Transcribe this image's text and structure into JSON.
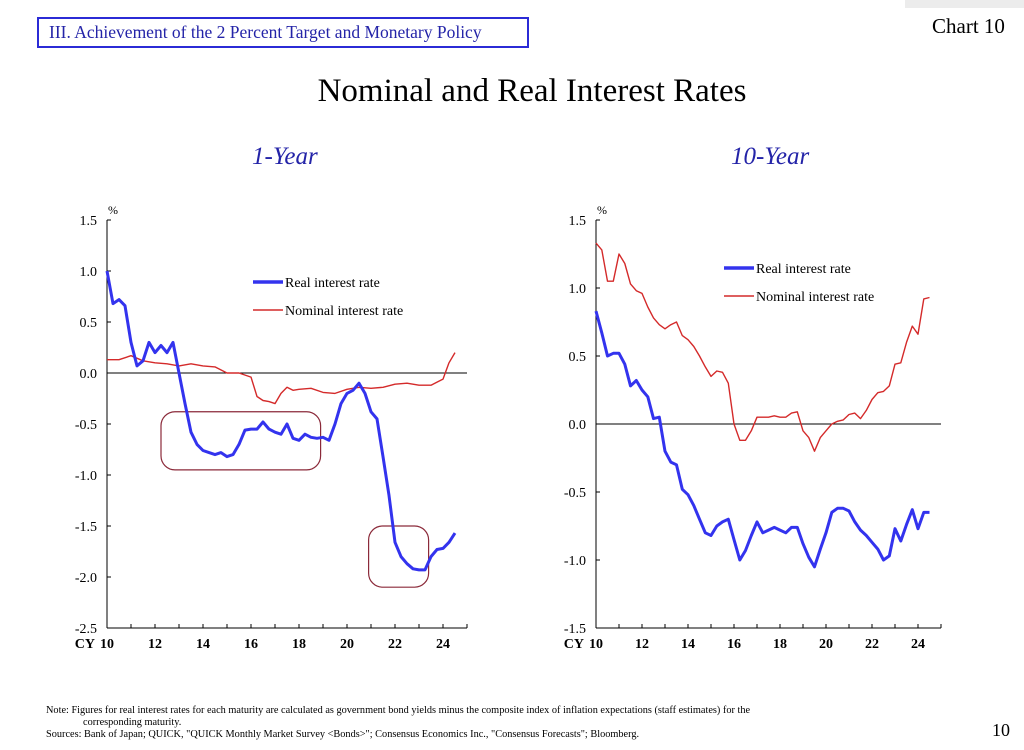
{
  "header": {
    "section_label": "III. Achievement of the 2 Percent Target and Monetary Policy",
    "chart_number": "Chart 10",
    "title": "Nominal and Real Interest Rates",
    "page_number": "10"
  },
  "footer": {
    "note_line1": "Note: Figures for real interest rates for each maturity are calculated as government bond yields minus the composite index of inflation expectations (staff estimates) for the",
    "note_line2": "corresponding maturity.",
    "sources": "Sources: Bank of Japan; QUICK, \"QUICK Monthly Market Survey <Bonds>\"; Consensus Economics Inc., \"Consensus Forecasts\"; Bloomberg."
  },
  "colors": {
    "real": "#3333ee",
    "nominal": "#d42a2a",
    "accent": "#2424a8",
    "highlight_box": "#8b2a3a"
  },
  "chart_data": [
    {
      "type": "line",
      "title": "1-Year",
      "unit_label": "%",
      "x_prefix": "CY",
      "xlim": [
        2010,
        2025
      ],
      "ylim": [
        -2.5,
        1.5
      ],
      "x_ticks": [
        10,
        12,
        14,
        16,
        18,
        20,
        22,
        24
      ],
      "y_ticks": [
        "1.5",
        "1.0",
        "0.5",
        "0.0",
        "-0.5",
        "-1.0",
        "-1.5",
        "-2.0",
        "-2.5"
      ],
      "legend_position": "top-right",
      "series": [
        {
          "name": "Real interest rate",
          "x": [
            2010.0,
            2010.25,
            2010.5,
            2010.75,
            2011.0,
            2011.25,
            2011.5,
            2011.75,
            2012.0,
            2012.25,
            2012.5,
            2012.75,
            2013.0,
            2013.25,
            2013.5,
            2013.75,
            2014.0,
            2014.25,
            2014.5,
            2014.75,
            2015.0,
            2015.25,
            2015.5,
            2015.75,
            2016.0,
            2016.25,
            2016.5,
            2016.75,
            2017.0,
            2017.25,
            2017.5,
            2017.75,
            2018.0,
            2018.25,
            2018.5,
            2018.75,
            2019.0,
            2019.25,
            2019.5,
            2019.75,
            2020.0,
            2020.25,
            2020.5,
            2020.75,
            2021.0,
            2021.25,
            2021.5,
            2021.75,
            2022.0,
            2022.25,
            2022.5,
            2022.75,
            2023.0,
            2023.25,
            2023.5,
            2023.75,
            2024.0,
            2024.25,
            2024.5
          ],
          "values": [
            1.0,
            0.68,
            0.72,
            0.66,
            0.3,
            0.07,
            0.12,
            0.3,
            0.2,
            0.27,
            0.2,
            0.3,
            0.0,
            -0.3,
            -0.58,
            -0.7,
            -0.76,
            -0.78,
            -0.8,
            -0.78,
            -0.82,
            -0.8,
            -0.7,
            -0.56,
            -0.55,
            -0.55,
            -0.48,
            -0.55,
            -0.58,
            -0.6,
            -0.5,
            -0.64,
            -0.66,
            -0.6,
            -0.63,
            -0.64,
            -0.63,
            -0.66,
            -0.5,
            -0.3,
            -0.2,
            -0.17,
            -0.1,
            -0.2,
            -0.38,
            -0.45,
            -0.82,
            -1.2,
            -1.66,
            -1.8,
            -1.87,
            -1.92,
            -1.93,
            -1.93,
            -1.8,
            -1.73,
            -1.72,
            -1.66,
            -1.57
          ]
        },
        {
          "name": "Nominal interest rate",
          "x": [
            2010.0,
            2010.5,
            2011.0,
            2011.5,
            2012.0,
            2012.5,
            2013.0,
            2013.5,
            2014.0,
            2014.5,
            2015.0,
            2015.5,
            2016.0,
            2016.25,
            2016.5,
            2016.75,
            2017.0,
            2017.25,
            2017.5,
            2017.75,
            2018.0,
            2018.5,
            2019.0,
            2019.5,
            2020.0,
            2020.5,
            2021.0,
            2021.5,
            2022.0,
            2022.5,
            2023.0,
            2023.5,
            2024.0,
            2024.25,
            2024.5
          ],
          "values": [
            0.13,
            0.13,
            0.17,
            0.12,
            0.1,
            0.09,
            0.07,
            0.09,
            0.07,
            0.06,
            0.0,
            0.0,
            -0.04,
            -0.23,
            -0.27,
            -0.28,
            -0.3,
            -0.2,
            -0.14,
            -0.17,
            -0.16,
            -0.15,
            -0.19,
            -0.2,
            -0.16,
            -0.14,
            -0.15,
            -0.14,
            -0.11,
            -0.1,
            -0.12,
            -0.12,
            -0.06,
            0.1,
            0.2
          ]
        }
      ]
    },
    {
      "type": "line",
      "title": "10-Year",
      "unit_label": "%",
      "x_prefix": "CY",
      "xlim": [
        2010,
        2025
      ],
      "ylim": [
        -1.5,
        1.5
      ],
      "x_ticks": [
        10,
        12,
        14,
        16,
        18,
        20,
        22,
        24
      ],
      "y_ticks": [
        "1.5",
        "1.0",
        "0.5",
        "0.0",
        "-0.5",
        "-1.0",
        "-1.5"
      ],
      "legend_position": "top-right",
      "series": [
        {
          "name": "Real interest rate",
          "x": [
            2010.0,
            2010.25,
            2010.5,
            2010.75,
            2011.0,
            2011.25,
            2011.5,
            2011.75,
            2012.0,
            2012.25,
            2012.5,
            2012.75,
            2013.0,
            2013.25,
            2013.5,
            2013.75,
            2014.0,
            2014.25,
            2014.5,
            2014.75,
            2015.0,
            2015.25,
            2015.5,
            2015.75,
            2016.0,
            2016.25,
            2016.5,
            2016.75,
            2017.0,
            2017.25,
            2017.5,
            2017.75,
            2018.0,
            2018.25,
            2018.5,
            2018.75,
            2019.0,
            2019.25,
            2019.5,
            2019.75,
            2020.0,
            2020.25,
            2020.5,
            2020.75,
            2021.0,
            2021.25,
            2021.5,
            2021.75,
            2022.0,
            2022.25,
            2022.5,
            2022.75,
            2023.0,
            2023.25,
            2023.5,
            2023.75,
            2024.0,
            2024.25,
            2024.5
          ],
          "values": [
            0.83,
            0.67,
            0.5,
            0.52,
            0.52,
            0.44,
            0.28,
            0.32,
            0.25,
            0.2,
            0.04,
            0.05,
            -0.2,
            -0.28,
            -0.3,
            -0.48,
            -0.52,
            -0.6,
            -0.7,
            -0.8,
            -0.82,
            -0.75,
            -0.72,
            -0.7,
            -0.85,
            -1.0,
            -0.93,
            -0.82,
            -0.72,
            -0.8,
            -0.78,
            -0.76,
            -0.78,
            -0.8,
            -0.76,
            -0.76,
            -0.88,
            -0.98,
            -1.05,
            -0.92,
            -0.8,
            -0.65,
            -0.62,
            -0.62,
            -0.64,
            -0.72,
            -0.78,
            -0.82,
            -0.87,
            -0.92,
            -1.0,
            -0.97,
            -0.77,
            -0.86,
            -0.74,
            -0.63,
            -0.77,
            -0.65,
            -0.65
          ]
        },
        {
          "name": "Nominal interest rate",
          "x": [
            2010.0,
            2010.25,
            2010.5,
            2010.75,
            2011.0,
            2011.25,
            2011.5,
            2011.75,
            2012.0,
            2012.25,
            2012.5,
            2012.75,
            2013.0,
            2013.25,
            2013.5,
            2013.75,
            2014.0,
            2014.25,
            2014.5,
            2014.75,
            2015.0,
            2015.25,
            2015.5,
            2015.75,
            2016.0,
            2016.25,
            2016.5,
            2016.75,
            2017.0,
            2017.25,
            2017.5,
            2017.75,
            2018.0,
            2018.25,
            2018.5,
            2018.75,
            2019.0,
            2019.25,
            2019.5,
            2019.75,
            2020.0,
            2020.25,
            2020.5,
            2020.75,
            2021.0,
            2021.25,
            2021.5,
            2021.75,
            2022.0,
            2022.25,
            2022.5,
            2022.75,
            2023.0,
            2023.25,
            2023.5,
            2023.75,
            2024.0,
            2024.25,
            2024.5
          ],
          "values": [
            1.33,
            1.28,
            1.05,
            1.05,
            1.25,
            1.18,
            1.03,
            0.98,
            0.96,
            0.86,
            0.78,
            0.73,
            0.7,
            0.73,
            0.75,
            0.65,
            0.62,
            0.57,
            0.5,
            0.42,
            0.35,
            0.39,
            0.38,
            0.3,
            0.0,
            -0.12,
            -0.12,
            -0.05,
            0.05,
            0.05,
            0.05,
            0.06,
            0.05,
            0.05,
            0.08,
            0.09,
            -0.05,
            -0.1,
            -0.2,
            -0.1,
            -0.05,
            0.0,
            0.02,
            0.03,
            0.07,
            0.08,
            0.04,
            0.1,
            0.18,
            0.23,
            0.24,
            0.28,
            0.44,
            0.45,
            0.6,
            0.72,
            0.66,
            0.92,
            0.93
          ]
        }
      ]
    }
  ]
}
